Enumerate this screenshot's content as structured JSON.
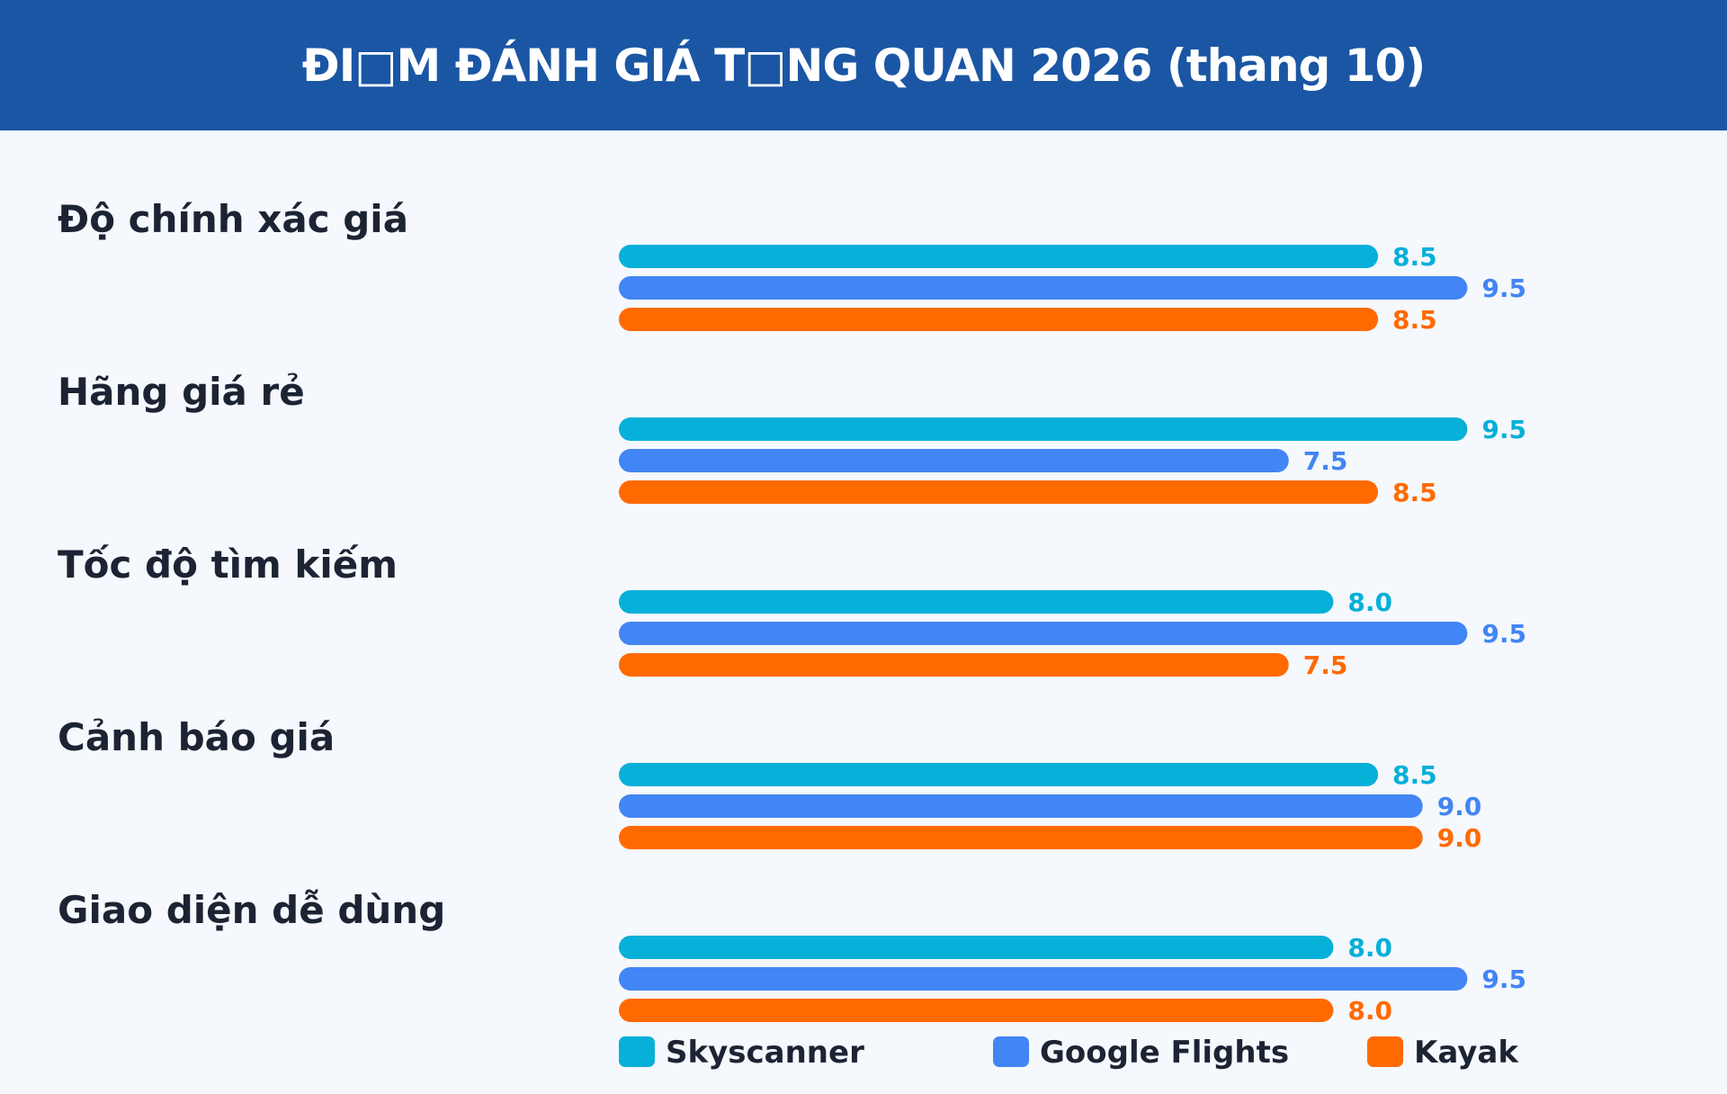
{
  "header": {
    "title": "ĐI□M ĐÁNH GIÁ T□NG QUAN 2026 (thang 10)"
  },
  "chart_data": {
    "type": "bar",
    "orientation": "horizontal",
    "title": "ĐI□M ĐÁNH GIÁ T□NG QUAN 2026 (thang 10)",
    "categories": [
      "Độ chính xác giá",
      "Hãng giá rẻ",
      "Tốc độ tìm kiếm",
      "Cảnh báo giá",
      "Giao diện dễ dùng"
    ],
    "series": [
      {
        "name": "Skyscanner",
        "color": "#06b0d8",
        "values": [
          8.5,
          9.5,
          8.0,
          8.5,
          8.0
        ],
        "labels": [
          "8.5",
          "9.5",
          "8.0",
          "8.5",
          "8.0"
        ]
      },
      {
        "name": "Google Flights",
        "color": "#4285f4",
        "values": [
          9.5,
          7.5,
          9.5,
          9.0,
          9.5
        ],
        "labels": [
          "9.5",
          "7.5",
          "9.5",
          "9.0",
          "9.5"
        ]
      },
      {
        "name": "Kayak",
        "color": "#ff6a00",
        "values": [
          8.5,
          8.5,
          7.5,
          9.0,
          8.0
        ],
        "labels": [
          "8.5",
          "8.5",
          "7.5",
          "9.0",
          "8.0"
        ]
      }
    ],
    "xlim": [
      0,
      10
    ],
    "grid": false,
    "legend_position": "bottom"
  }
}
